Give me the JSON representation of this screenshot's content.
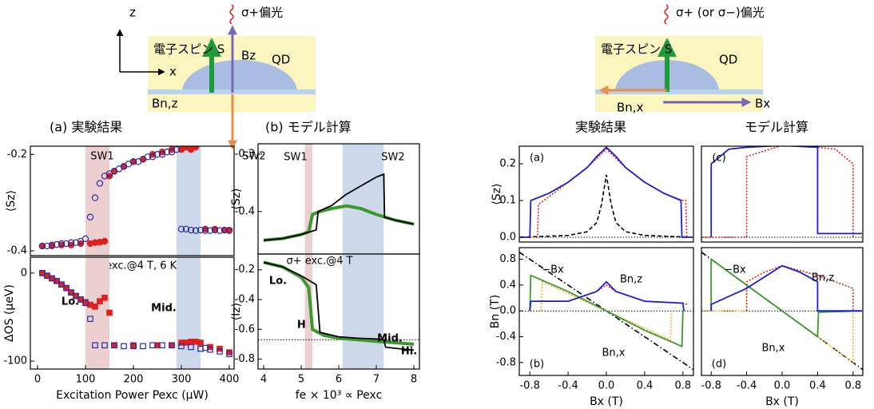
{
  "diagrams": [
    {
      "axis_z": "z",
      "axis_x": "x",
      "light": "σ+偏光",
      "spin": "電子スピン S",
      "field": "Bz",
      "dot": "QD",
      "nuclear_field": "Bn,z"
    },
    {
      "light": "σ+ (or σ−)偏光",
      "spin": "電子スピン S",
      "dot": "QD",
      "nuclear_field": "Bn,x",
      "field": "Bx"
    }
  ],
  "panel_titles": [
    "(a) 実験結果",
    "(b) モデル計算",
    "実験結果",
    "モデル計算"
  ],
  "chart_data": [
    {
      "type": "scatter",
      "y_label": "⟨Sz⟩",
      "xlim": [
        -15,
        410
      ],
      "ylim": [
        -0.41,
        -0.183
      ],
      "yticks": [
        -0.2,
        -0.4
      ],
      "bands": [
        {
          "from": 100,
          "to": 150,
          "color": "#ecd0d0"
        },
        {
          "from": 290,
          "to": 340,
          "color": "#cdd8ea"
        }
      ],
      "annotations": [
        "SW1",
        "SW2",
        "σ+ exc.@4 T, 6 K"
      ],
      "series": [
        {
          "color": "#e0201c",
          "marker": "filled-circle",
          "x": [
            10,
            30,
            50,
            70,
            90,
            110,
            120,
            130,
            140,
            150,
            160,
            180,
            200,
            220,
            240,
            260,
            280,
            300,
            310,
            320,
            330,
            350,
            370,
            390,
            400
          ],
          "values": [
            -0.39,
            -0.39,
            -0.388,
            -0.388,
            -0.385,
            -0.385,
            -0.383,
            -0.382,
            -0.38,
            -0.245,
            -0.235,
            -0.225,
            -0.215,
            -0.21,
            -0.2,
            -0.195,
            -0.19,
            -0.19,
            -0.185,
            -0.19,
            -0.185,
            -0.355,
            -0.355,
            -0.357,
            -0.357
          ]
        },
        {
          "color": "#2a2aa8",
          "marker": "open-circle",
          "x": [
            10,
            20,
            30,
            40,
            50,
            60,
            70,
            80,
            90,
            100,
            110,
            120,
            130,
            140,
            150,
            160,
            170,
            180,
            190,
            200,
            210,
            220,
            230,
            240,
            250,
            260,
            270,
            280,
            290,
            300,
            310,
            320,
            330,
            340,
            350,
            360,
            370,
            380,
            390,
            400
          ],
          "values": [
            -0.39,
            -0.39,
            -0.388,
            -0.387,
            -0.385,
            -0.385,
            -0.383,
            -0.383,
            -0.38,
            -0.375,
            -0.33,
            -0.29,
            -0.26,
            -0.245,
            -0.24,
            -0.235,
            -0.23,
            -0.225,
            -0.22,
            -0.215,
            -0.215,
            -0.21,
            -0.205,
            -0.205,
            -0.2,
            -0.2,
            -0.195,
            -0.195,
            -0.19,
            -0.355,
            -0.355,
            -0.357,
            -0.358,
            -0.357,
            -0.358,
            -0.358,
            -0.357,
            -0.358,
            -0.357,
            -0.358
          ]
        }
      ]
    },
    {
      "type": "scatter",
      "y_label": "ΔOS (μeV)",
      "x_label": "Excitation Power Pexc (μW)",
      "xlim": [
        -15,
        410
      ],
      "ylim": [
        -109,
        18
      ],
      "xticks": [
        0,
        100,
        200,
        300,
        400
      ],
      "yticks": [
        0,
        -100
      ],
      "bands": [
        {
          "from": 100,
          "to": 150,
          "color": "#ecd0d0"
        },
        {
          "from": 290,
          "to": 340,
          "color": "#cdd8ea"
        }
      ],
      "annotations": [
        "Lo.",
        "Mid.",
        "Hi."
      ],
      "series": [
        {
          "color": "#e0201c",
          "marker": "filled-square",
          "x": [
            10,
            20,
            30,
            40,
            50,
            60,
            70,
            80,
            90,
            100,
            110,
            120,
            130,
            140,
            150,
            160,
            200,
            250,
            280,
            300,
            310,
            320,
            330,
            340,
            360,
            380,
            400
          ],
          "values": [
            0,
            -3,
            -6,
            -9,
            -13,
            -17,
            -22,
            -26,
            -30,
            -33,
            -36,
            -38,
            -32,
            -28,
            -45,
            -82,
            -82,
            -82,
            -82,
            -79,
            -79,
            -78,
            -78,
            -79,
            -84,
            -86,
            -90
          ]
        },
        {
          "color": "#2a2aa8",
          "marker": "open-square",
          "x": [
            10,
            20,
            30,
            40,
            50,
            60,
            70,
            80,
            90,
            100,
            110,
            120,
            140,
            160,
            180,
            200,
            220,
            240,
            260,
            280,
            300,
            320,
            340,
            350,
            360,
            380,
            400
          ],
          "values": [
            0,
            -3,
            -6,
            -9,
            -13,
            -17,
            -22,
            -26,
            -30,
            -34,
            -52,
            -82,
            -82,
            -82,
            -83,
            -83,
            -83,
            -82,
            -82,
            -82,
            -83,
            -84,
            -86,
            -85,
            -87,
            -89,
            -92
          ]
        }
      ]
    },
    {
      "type": "line",
      "y_label": "⟨Sz⟩",
      "xlim": [
        3.85,
        8.15
      ],
      "ylim": [
        -0.474,
        -0.282
      ],
      "yticks": [
        -0.3,
        -0.4
      ],
      "bands": [
        {
          "from": 5.1,
          "to": 5.3,
          "color": "#ecd0d0"
        },
        {
          "from": 6.1,
          "to": 7.2,
          "color": "#cdd8ea"
        }
      ],
      "annotations": [
        "SW1",
        "SW2"
      ],
      "series": [
        {
          "color": "#3c9a2c",
          "style": "thick",
          "x": [
            4,
            4.5,
            5,
            5.2,
            5.3,
            5.5,
            5.8,
            6.2,
            6.6,
            7,
            7.5,
            8
          ],
          "values": [
            -0.45,
            -0.447,
            -0.44,
            -0.435,
            -0.405,
            -0.4,
            -0.395,
            -0.39,
            -0.395,
            -0.405,
            -0.415,
            -0.422
          ]
        },
        {
          "color": "#000000",
          "style": "solid",
          "x": [
            4,
            4.5,
            5,
            5.4,
            5.45,
            5.8,
            6.2,
            6.6,
            7,
            7.2,
            7.22,
            7.5,
            8
          ],
          "values": [
            -0.45,
            -0.447,
            -0.44,
            -0.432,
            -0.4,
            -0.39,
            -0.37,
            -0.355,
            -0.34,
            -0.335,
            -0.41,
            -0.415,
            -0.422
          ]
        }
      ]
    },
    {
      "type": "line",
      "y_label": "⟨Iz⟩",
      "x_label": "fe × 10³ ∝ Pexc",
      "xlim": [
        3.85,
        8.15
      ],
      "ylim": [
        -0.867,
        -0.094
      ],
      "xticks": [
        4,
        5,
        6,
        7,
        8
      ],
      "yticks": [
        -0.2,
        -0.4,
        -0.6,
        -0.8
      ],
      "bands": [
        {
          "from": 5.1,
          "to": 5.3,
          "color": "#ecd0d0"
        },
        {
          "from": 6.1,
          "to": 7.2,
          "color": "#cdd8ea"
        }
      ],
      "reference_lines": [
        -0.67
      ],
      "annotations": [
        "σ+ exc.@4 T",
        "Lo.",
        "Mid.",
        "Hi."
      ],
      "series": [
        {
          "color": "#3c9a2c",
          "style": "thick",
          "x": [
            4,
            4.5,
            5,
            5.2,
            5.3,
            5.6,
            6,
            6.5,
            7,
            7.5,
            8
          ],
          "values": [
            -0.15,
            -0.18,
            -0.25,
            -0.32,
            -0.6,
            -0.64,
            -0.66,
            -0.67,
            -0.68,
            -0.69,
            -0.7
          ]
        },
        {
          "color": "#000000",
          "style": "solid",
          "x": [
            4,
            4.5,
            5,
            5.4,
            5.5,
            6,
            6.5,
            7,
            7.2,
            7.25,
            7.6,
            8
          ],
          "values": [
            -0.15,
            -0.18,
            -0.24,
            -0.3,
            -0.62,
            -0.65,
            -0.66,
            -0.665,
            -0.67,
            -0.72,
            -0.73,
            -0.74
          ]
        }
      ]
    },
    {
      "type": "line",
      "y_label": "⟨Sz⟩",
      "xlim": [
        -0.91,
        0.91
      ],
      "ylim": [
        -0.013,
        0.248
      ],
      "yticks": [
        {
          "value": 0,
          "label": "0.0"
        },
        0.1,
        0.2
      ],
      "reference_lines": [
        0
      ],
      "annotations": [
        "(a)"
      ],
      "series": [
        {
          "color": "#000000",
          "style": "dashed",
          "x": [
            -0.9,
            -0.4,
            -0.2,
            -0.1,
            -0.05,
            0,
            0.05,
            0.1,
            0.2,
            0.4,
            0.9
          ],
          "values": [
            0,
            0.005,
            0.015,
            0.04,
            0.09,
            0.17,
            0.09,
            0.04,
            0.015,
            0.005,
            0
          ]
        },
        {
          "color": "#e0201c",
          "style": "dotted",
          "x": [
            -0.9,
            -0.72,
            -0.71,
            -0.6,
            -0.4,
            -0.2,
            0,
            0.2,
            0.4,
            0.6,
            0.8,
            0.83,
            0.84,
            0.9
          ],
          "values": [
            0,
            0,
            0.09,
            0.11,
            0.15,
            0.19,
            0.24,
            0.19,
            0.15,
            0.12,
            0.1,
            0.1,
            0,
            0
          ]
        },
        {
          "color": "#1f1fd0",
          "style": "solid",
          "x": [
            -0.9,
            -0.8,
            -0.79,
            -0.6,
            -0.4,
            -0.2,
            -0.1,
            0,
            0.1,
            0.2,
            0.4,
            0.6,
            0.78,
            0.79,
            0.9
          ],
          "values": [
            0,
            0,
            0.1,
            0.12,
            0.15,
            0.19,
            0.22,
            0.245,
            0.22,
            0.19,
            0.15,
            0.12,
            0.1,
            0,
            0
          ]
        }
      ]
    },
    {
      "type": "line",
      "xlim": [
        -0.91,
        0.91
      ],
      "ylim": [
        -0.013,
        0.248
      ],
      "reference_lines": [
        0
      ],
      "annotations": [
        "(c)"
      ],
      "series": [
        {
          "color": "#e0201c",
          "style": "dotted",
          "x": [
            -0.9,
            -0.4,
            -0.4,
            0,
            0.4,
            0.6,
            0.8,
            0.8
          ],
          "values": [
            0,
            0,
            0.22,
            0.25,
            0.245,
            0.24,
            0.2,
            0
          ]
        },
        {
          "color": "#1f1fd0",
          "style": "solid",
          "x": [
            -0.8,
            -0.8,
            -0.6,
            -0.4,
            0,
            0.4,
            0.4,
            0.9
          ],
          "values": [
            0,
            0.2,
            0.24,
            0.245,
            0.25,
            0.245,
            0.01,
            0.01
          ]
        }
      ]
    },
    {
      "type": "line",
      "y_label": "Bn (T)",
      "x_label": "Bx (T)",
      "xlim": [
        -0.91,
        0.91
      ],
      "ylim": [
        -1,
        0.98
      ],
      "xticks": [
        -0.8,
        -0.4,
        {
          "value": 0,
          "label": "0.0"
        },
        0.4,
        0.8
      ],
      "yticks": [
        0.8,
        0.4,
        {
          "value": 0,
          "label": "0.0"
        },
        -0.4,
        -0.8
      ],
      "reference_lines": [
        0
      ],
      "annotations": [
        "(b)",
        "−Bx",
        "Bn,z",
        "Bn,x"
      ],
      "series": [
        {
          "color": "#000000",
          "style": "dashdot",
          "x": [
            -0.91,
            0.91
          ],
          "values": [
            0.91,
            -0.91
          ]
        },
        {
          "color": "#f0b020",
          "style": "dotted",
          "x": [
            -0.68,
            -0.67,
            0,
            0.67,
            0.68
          ],
          "values": [
            0,
            0.45,
            0,
            -0.45,
            0
          ]
        },
        {
          "color": "#3c9a2c",
          "style": "solid",
          "x": [
            -0.8,
            -0.79,
            -0.4,
            0,
            0.4,
            0.79,
            0.8
          ],
          "values": [
            0,
            0.55,
            0.3,
            0,
            -0.3,
            -0.55,
            0
          ]
        },
        {
          "color": "#e0201c",
          "style": "dotted",
          "x": [
            -0.7,
            -0.4,
            -0.1,
            0,
            0.1,
            0.4,
            0.8,
            0.85
          ],
          "values": [
            0.15,
            0.15,
            0.3,
            0.4,
            0.3,
            0.15,
            0.12,
            0.1
          ]
        },
        {
          "color": "#1f1fd0",
          "style": "solid",
          "x": [
            -0.8,
            -0.79,
            -0.4,
            -0.1,
            0,
            0.1,
            0.4,
            0.8,
            0.81
          ],
          "values": [
            0,
            0.15,
            0.15,
            0.3,
            0.45,
            0.3,
            0.15,
            0.12,
            0
          ]
        }
      ]
    },
    {
      "type": "line",
      "x_label": "Bx (T)",
      "xlim": [
        -0.91,
        0.91
      ],
      "ylim": [
        -1,
        0.98
      ],
      "xticks": [
        -0.8,
        -0.4,
        {
          "value": 0,
          "label": "0.0"
        },
        0.4,
        0.8
      ],
      "reference_lines": [
        0
      ],
      "annotations": [
        "(d)",
        "−Bx",
        "Bn,z",
        "Bn,x"
      ],
      "series": [
        {
          "color": "#000000",
          "style": "dashdot",
          "x": [
            -0.91,
            0.91
          ],
          "values": [
            0.91,
            -0.91
          ]
        },
        {
          "color": "#f0b020",
          "style": "dotted",
          "x": [
            -0.9,
            -0.4,
            -0.4,
            0,
            0.8,
            0.8
          ],
          "values": [
            0,
            0,
            0.4,
            0,
            -0.8,
            0
          ]
        },
        {
          "color": "#e0201c",
          "style": "dotted",
          "x": [
            -0.4,
            -0.4,
            -0.2,
            0,
            0.4,
            0.8,
            0.8
          ],
          "values": [
            0,
            0.45,
            0.6,
            0.7,
            0.55,
            0.35,
            0
          ]
        },
        {
          "color": "#3c9a2c",
          "style": "solid",
          "x": [
            -0.8,
            -0.8,
            0,
            0.4,
            0.41,
            0.9
          ],
          "values": [
            0,
            0.8,
            0,
            -0.4,
            -0.02,
            0
          ]
        },
        {
          "color": "#1f1fd0",
          "style": "solid",
          "x": [
            -0.8,
            -0.8,
            -0.4,
            0,
            0.2,
            0.4,
            0.4,
            0.9
          ],
          "values": [
            0,
            0.1,
            0.35,
            0.7,
            0.6,
            0.45,
            0,
            0
          ]
        }
      ]
    }
  ]
}
